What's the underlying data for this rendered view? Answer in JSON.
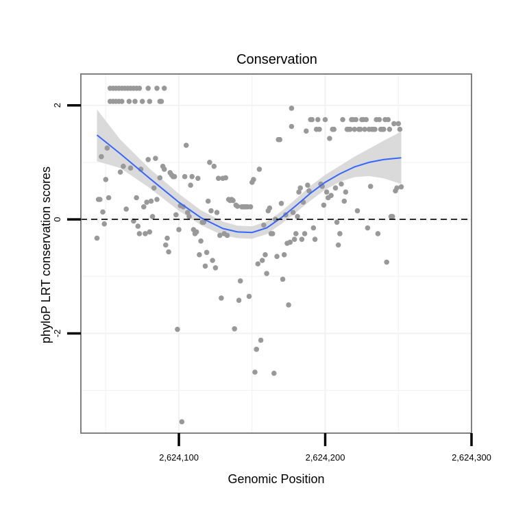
{
  "chart_data": {
    "type": "scatter",
    "title": "Conservation",
    "xlabel": "Genomic Position",
    "ylabel": "phyloP LRT conservation scores",
    "xlim": [
      2624033,
      2624300
    ],
    "ylim": [
      -3.75,
      2.55
    ],
    "x_ticks": [
      {
        "value": 2624100,
        "label": "2,624,100"
      },
      {
        "value": 2624200,
        "label": "2,624,200"
      },
      {
        "value": 2624300,
        "label": "2,624,300"
      }
    ],
    "y_ticks": [
      {
        "value": 2,
        "label": "2"
      },
      {
        "value": 0,
        "label": "0"
      },
      {
        "value": -2,
        "label": "-2"
      }
    ],
    "grid": true,
    "reference_line": {
      "y": 0,
      "style": "dashed",
      "color": "#000000"
    },
    "point_color": "#999999",
    "smooth_color": "#3366ff",
    "ribbon_color": "#d3d3d3",
    "series": [
      {
        "name": "phyloP scores",
        "points": [
          [
            2624044,
            -0.33
          ],
          [
            2624045,
            0.35
          ],
          [
            2624046,
            0.35
          ],
          [
            2624047,
            1.1
          ],
          [
            2624048,
            0.13
          ],
          [
            2624049,
            -0.08
          ],
          [
            2624050,
            0.7
          ],
          [
            2624051,
            1.25
          ],
          [
            2624052,
            0.38
          ],
          [
            2624053,
            2.3
          ],
          [
            2624053,
            2.07
          ],
          [
            2624055,
            2.3
          ],
          [
            2624055,
            2.07
          ],
          [
            2624057,
            2.3
          ],
          [
            2624057,
            2.07
          ],
          [
            2624059,
            2.3
          ],
          [
            2624059,
            2.07
          ],
          [
            2624061,
            2.3
          ],
          [
            2624061,
            2.07
          ],
          [
            2624063,
            2.3
          ],
          [
            2624065,
            2.3
          ],
          [
            2624066,
            2.07
          ],
          [
            2624067,
            2.3
          ],
          [
            2624069,
            2.3
          ],
          [
            2624070,
            2.07
          ],
          [
            2624071,
            2.3
          ],
          [
            2624073,
            2.3
          ],
          [
            2624075,
            2.07
          ],
          [
            2624079,
            2.3
          ],
          [
            2624080,
            2.07
          ],
          [
            2624085,
            2.3
          ],
          [
            2624087,
            2.07
          ],
          [
            2624088,
            2.07
          ],
          [
            2624090,
            2.3
          ],
          [
            2624060,
            0.83
          ],
          [
            2624062,
            0.93
          ],
          [
            2624064,
            0.18
          ],
          [
            2624067,
            0.9
          ],
          [
            2624069,
            -0.03
          ],
          [
            2624071,
            0.38
          ],
          [
            2624072,
            -0.12
          ],
          [
            2624073,
            -0.25
          ],
          [
            2624074,
            0.88
          ],
          [
            2624076,
            0.22
          ],
          [
            2624077,
            -0.25
          ],
          [
            2624078,
            0.3
          ],
          [
            2624079,
            1.05
          ],
          [
            2624080,
            -0.22
          ],
          [
            2624081,
            0.32
          ],
          [
            2624082,
            0.05
          ],
          [
            2624083,
            0.55
          ],
          [
            2624084,
            1.07
          ],
          [
            2624085,
            0.35
          ],
          [
            2624087,
            0.73
          ],
          [
            2624089,
            0.93
          ],
          [
            2624090,
            0.88
          ],
          [
            2624091,
            -0.45
          ],
          [
            2624092,
            -0.33
          ],
          [
            2624093,
            -0.57
          ],
          [
            2624094,
            0.82
          ],
          [
            2624095,
            0.78
          ],
          [
            2624096,
            0.75
          ],
          [
            2624097,
            0.75
          ],
          [
            2624098,
            0.08
          ],
          [
            2624099,
            -1.93
          ],
          [
            2624100,
            -0.18
          ],
          [
            2624101,
            0.24
          ],
          [
            2624102,
            -3.55
          ],
          [
            2624103,
            0.22
          ],
          [
            2624104,
            0.75
          ],
          [
            2624105,
            1.3
          ],
          [
            2624106,
            0.12
          ],
          [
            2624107,
            0.05
          ],
          [
            2624108,
            0.6
          ],
          [
            2624109,
            0.75
          ],
          [
            2624110,
            -0.18
          ],
          [
            2624111,
            -0.25
          ],
          [
            2624112,
            -0.22
          ],
          [
            2624113,
            0.72
          ],
          [
            2624114,
            -0.62
          ],
          [
            2624115,
            -0.38
          ],
          [
            2624116,
            -0.05
          ],
          [
            2624117,
            -0.05
          ],
          [
            2624118,
            -0.82
          ],
          [
            2624119,
            -0.58
          ],
          [
            2624120,
            0.32
          ],
          [
            2624121,
            1.0
          ],
          [
            2624122,
            0.15
          ],
          [
            2624123,
            -0.72
          ],
          [
            2624124,
            0.93
          ],
          [
            2624125,
            -0.85
          ],
          [
            2624126,
            0.12
          ],
          [
            2624127,
            0.72
          ],
          [
            2624128,
            -0.28
          ],
          [
            2624129,
            -1.38
          ],
          [
            2624130,
            0.72
          ],
          [
            2624131,
            -0.25
          ],
          [
            2624132,
            0.73
          ],
          [
            2624133,
            -0.28
          ],
          [
            2624134,
            0.35
          ],
          [
            2624135,
            0.33
          ],
          [
            2624136,
            0.35
          ],
          [
            2624137,
            0.33
          ],
          [
            2624138,
            -1.92
          ],
          [
            2624139,
            0.25
          ],
          [
            2624140,
            0.23
          ],
          [
            2624141,
            -1.42
          ],
          [
            2624142,
            -1.08
          ],
          [
            2624143,
            0.22
          ],
          [
            2624144,
            0.22
          ],
          [
            2624145,
            0.22
          ],
          [
            2624146,
            0.22
          ],
          [
            2624147,
            0.22
          ],
          [
            2624148,
            -1.35
          ],
          [
            2624149,
            0.22
          ],
          [
            2624150,
            0.65
          ],
          [
            2624151,
            0.7
          ],
          [
            2624152,
            -2.68
          ],
          [
            2624153,
            -2.28
          ],
          [
            2624154,
            -0.78
          ],
          [
            2624155,
            0.88
          ],
          [
            2624156,
            -2.12
          ],
          [
            2624157,
            -0.72
          ],
          [
            2624158,
            -0.1
          ],
          [
            2624159,
            -0.62
          ],
          [
            2624160,
            -0.95
          ],
          [
            2624161,
            0.15
          ],
          [
            2624162,
            0.2
          ],
          [
            2624163,
            -0.25
          ],
          [
            2624164,
            -0.25
          ],
          [
            2624165,
            -2.7
          ],
          [
            2624166,
            0.0
          ],
          [
            2624167,
            -0.65
          ],
          [
            2624168,
            1.4
          ],
          [
            2624169,
            1.4
          ],
          [
            2624170,
            0.28
          ],
          [
            2624171,
            -1.05
          ],
          [
            2624172,
            -0.62
          ],
          [
            2624173,
            0.08
          ],
          [
            2624174,
            -0.42
          ],
          [
            2624175,
            -1.5
          ],
          [
            2624176,
            -0.4
          ],
          [
            2624177,
            1.95
          ],
          [
            2624177,
            1.63
          ],
          [
            2624178,
            0.12
          ],
          [
            2624179,
            -0.35
          ],
          [
            2624180,
            -0.25
          ],
          [
            2624181,
            0.05
          ],
          [
            2624182,
            0.48
          ],
          [
            2624183,
            0.55
          ],
          [
            2624184,
            -0.35
          ],
          [
            2624185,
            0.3
          ],
          [
            2624186,
            -0.25
          ],
          [
            2624187,
            1.55
          ],
          [
            2624188,
            0.6
          ],
          [
            2624189,
            0.5
          ],
          [
            2624190,
            1.75
          ],
          [
            2624191,
            1.75
          ],
          [
            2624192,
            -0.15
          ],
          [
            2624193,
            -0.35
          ],
          [
            2624194,
            1.58
          ],
          [
            2624195,
            1.75
          ],
          [
            2624196,
            1.58
          ],
          [
            2624197,
            0.62
          ],
          [
            2624198,
            0.58
          ],
          [
            2624199,
            0.25
          ],
          [
            2624200,
            1.75
          ],
          [
            2624201,
            0.48
          ],
          [
            2624202,
            0.38
          ],
          [
            2624203,
            1.42
          ],
          [
            2624204,
            0.42
          ],
          [
            2624205,
            1.58
          ],
          [
            2624206,
            1.58
          ],
          [
            2624207,
            0.55
          ],
          [
            2624208,
            -0.05
          ],
          [
            2624209,
            -0.45
          ],
          [
            2624210,
            -0.25
          ],
          [
            2624211,
            0.62
          ],
          [
            2624212,
            1.75
          ],
          [
            2624213,
            0.32
          ],
          [
            2624214,
            0.48
          ],
          [
            2624215,
            1.58
          ],
          [
            2624216,
            1.58
          ],
          [
            2624217,
            1.58
          ],
          [
            2624218,
            1.75
          ],
          [
            2624219,
            1.75
          ],
          [
            2624220,
            1.58
          ],
          [
            2624221,
            1.75
          ],
          [
            2624222,
            0.15
          ],
          [
            2624223,
            1.58
          ],
          [
            2624224,
            1.58
          ],
          [
            2624225,
            1.75
          ],
          [
            2624226,
            1.75
          ],
          [
            2624227,
            1.58
          ],
          [
            2624228,
            1.75
          ],
          [
            2624229,
            -0.15
          ],
          [
            2624230,
            1.58
          ],
          [
            2624231,
            0.58
          ],
          [
            2624232,
            1.58
          ],
          [
            2624233,
            1.58
          ],
          [
            2624234,
            1.58
          ],
          [
            2624235,
            1.75
          ],
          [
            2624236,
            -0.25
          ],
          [
            2624237,
            1.75
          ],
          [
            2624238,
            1.58
          ],
          [
            2624239,
            1.58
          ],
          [
            2624240,
            1.58
          ],
          [
            2624241,
            1.75
          ],
          [
            2624242,
            -0.75
          ],
          [
            2624243,
            1.75
          ],
          [
            2624244,
            1.58
          ],
          [
            2624245,
            0.05
          ],
          [
            2624246,
            0.05
          ],
          [
            2624247,
            1.68
          ],
          [
            2624248,
            0.5
          ],
          [
            2624249,
            0.55
          ],
          [
            2624250,
            1.68
          ],
          [
            2624251,
            1.58
          ],
          [
            2624252,
            0.57
          ]
        ]
      }
    ],
    "smooth_fit": {
      "x": [
        2624044,
        2624060,
        2624080,
        2624100,
        2624115,
        2624130,
        2624140,
        2624150,
        2624160,
        2624170,
        2624180,
        2624190,
        2624200,
        2624210,
        2624220,
        2624230,
        2624240,
        2624252
      ],
      "y": [
        1.48,
        1.15,
        0.72,
        0.3,
        0.03,
        -0.16,
        -0.22,
        -0.23,
        -0.15,
        0.03,
        0.24,
        0.46,
        0.65,
        0.8,
        0.92,
        1.0,
        1.05,
        1.08
      ],
      "lower": [
        1.02,
        0.9,
        0.55,
        0.15,
        -0.1,
        -0.28,
        -0.33,
        -0.34,
        -0.26,
        -0.08,
        0.12,
        0.33,
        0.52,
        0.66,
        0.74,
        0.76,
        0.72,
        0.62
      ],
      "upper": [
        1.93,
        1.4,
        0.89,
        0.45,
        0.16,
        -0.04,
        -0.11,
        -0.12,
        -0.04,
        0.14,
        0.36,
        0.59,
        0.78,
        0.94,
        1.1,
        1.24,
        1.38,
        1.54
      ]
    }
  }
}
